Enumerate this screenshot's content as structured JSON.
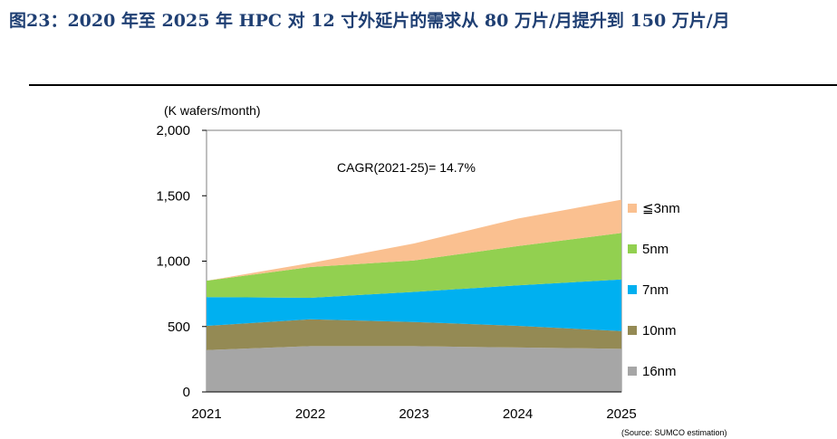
{
  "title": "图23：2020 年至 2025 年 HPC 对 12 寸外延片的需求从 80 万片/月提升到 150 万片/月",
  "chart_data": {
    "type": "area",
    "stacked": true,
    "ylabel": "(K wafers/month)",
    "x": [
      "2021",
      "2022",
      "2023",
      "2024",
      "2025"
    ],
    "ylim": [
      0,
      2000
    ],
    "yticks": [
      "0",
      "500",
      "1,000",
      "1,500",
      "2,000"
    ],
    "annotation": "CAGR(2021-25)= 14.7%",
    "source": "(Source: SUMCO estimation)",
    "legend_position": "right",
    "series": [
      {
        "name": "16nm",
        "color": "#a6a6a6",
        "values": [
          320,
          350,
          350,
          340,
          330
        ]
      },
      {
        "name": "10nm",
        "color": "#948a54",
        "values": [
          185,
          205,
          185,
          165,
          135
        ]
      },
      {
        "name": "7nm",
        "color": "#00b0f0",
        "values": [
          220,
          165,
          230,
          310,
          395
        ]
      },
      {
        "name": "5nm",
        "color": "#92d050",
        "values": [
          125,
          235,
          240,
          300,
          355
        ]
      },
      {
        "name": "≦3nm",
        "color": "#fac090",
        "values": [
          0,
          30,
          130,
          210,
          255
        ]
      }
    ]
  }
}
